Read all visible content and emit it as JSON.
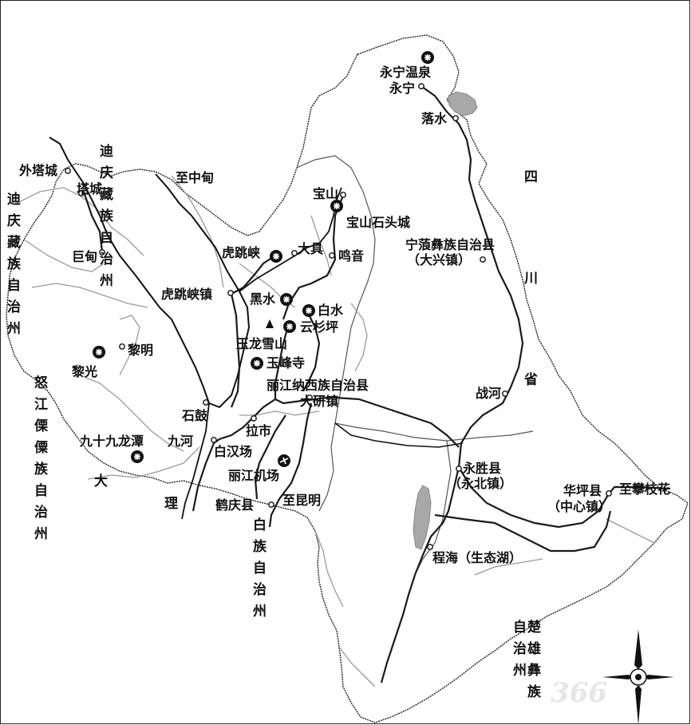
{
  "places": {
    "yongning_hotspring": "永宁温泉",
    "yongning": "永宁",
    "luoshui": "落水",
    "waitacheng": "外塔城",
    "tacheng": "塔城",
    "zhizhongdian": "至中甸",
    "baoshan": "宝山",
    "baoshan_stone_city": "宝山石头城",
    "judian": "巨甸",
    "hutiaoxia": "虎跳峡",
    "daju": "大具",
    "mingyin": "鸣音",
    "ninglang_county": "宁蒗彝族自治县",
    "daxing_town": "（大兴镇）",
    "hutiaoxia_town": "虎跳峡镇",
    "heishui": "黑水",
    "baishui": "白水",
    "yunshanping": "云杉坪",
    "yulong_snow_mountain": "玉龙雪山",
    "liming": "黎明",
    "liguang": "黎光",
    "yufeng_temple": "玉峰寺",
    "lijiang_county": "丽江纳西族自治县",
    "dayan_town": "大研镇",
    "zhanhe": "战河",
    "shigu": "石鼓",
    "lashi": "拉市",
    "jiushijiu_longtan": "九十九龙潭",
    "jiuhe": "九河",
    "baihanchang": "白汉场",
    "yongsheng_county": "永胜县",
    "yongbei_town": "（永北镇）",
    "huaping_county": "华坪县",
    "zhongxin_town": "（中心镇）",
    "zhipanzhihua": "至攀枝花",
    "lijiang_airport": "丽江机场",
    "heqing_county": "鹤庆县",
    "zhikunming": "至昆明",
    "chenghai": "程海（生态湖）"
  },
  "regions": {
    "diqing_1": "迪庆藏族自治州",
    "diqing_2": "迪庆藏族自治州",
    "nujiang": "怒江傈僳族自治州",
    "dali_1": "大理",
    "dali_2": "白族自治州",
    "chuxiong": "楚雄彝族自治州",
    "sichuan": "四川省"
  },
  "watermark": "366",
  "icons": {
    "scenic": "scenic-spot-icon",
    "airport": "airport-icon",
    "peak": "mountain-peak-icon",
    "town": "town-dot-icon",
    "compass": "north-arrow-icon"
  },
  "colors": {
    "border": "#222222",
    "road": "#1a1a1a",
    "river": "#9a9a9a",
    "lake": "#a8a8a8"
  }
}
